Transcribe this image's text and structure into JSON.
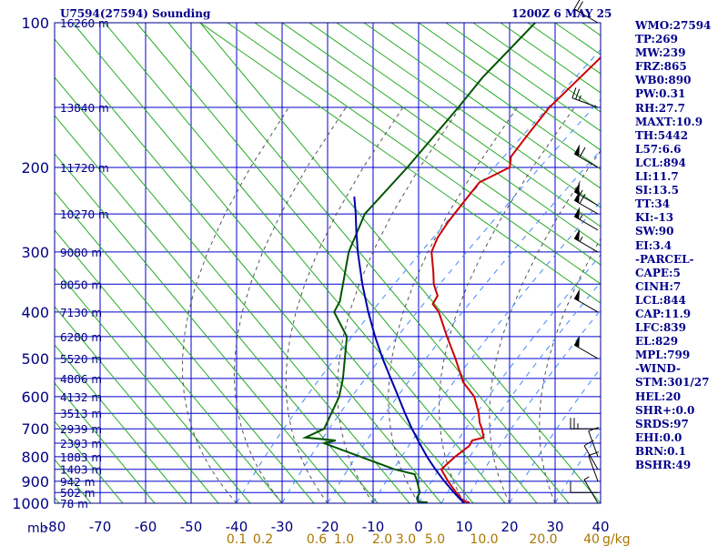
{
  "header": {
    "station": "U7594(27594) Sounding",
    "time": "1200Z  6 MAY 25"
  },
  "indices": [
    "WMO:27594",
    "TP:269",
    "MW:239",
    "FRZ:865",
    "WB0:890",
    "PW:0.31",
    "RH:27.7",
    "MAXT:10.9",
    "TH:5442",
    "L57:6.6",
    "LCL:894",
    "LI:11.7",
    "SI:13.5",
    "TT:34",
    "KI:-13",
    "SW:90",
    "EI:3.4",
    "-PARCEL-",
    "CAPE:5",
    "CINH:7",
    "LCL:844",
    "CAP:11.9",
    "LFC:839",
    "EL:829",
    "MPL:799",
    "-WIND-",
    "STM:301/27",
    "HEL:20",
    "SHR+:0.0",
    "SRDS:97",
    "EHI:0.0",
    "BRN:0.1",
    "BSHR:49"
  ],
  "colors": {
    "frame": "#00008b",
    "grid": "#0000cd",
    "dry_adiabat": "#22aa22",
    "temperature": "#cc0000",
    "dewpoint": "#005500",
    "parcel": "#0000aa",
    "moist_adiabat": "#555555",
    "mixing_ratio": "#4488ff",
    "label": "#000080",
    "mr_label": "#aa7700"
  },
  "chart_data": {
    "type": "skew-t",
    "y_axis": {
      "label": "mb",
      "scale": "log",
      "range": [
        1000,
        100
      ],
      "ticks": [
        100,
        200,
        300,
        400,
        500,
        600,
        700,
        800,
        900,
        1000
      ]
    },
    "x_axis": {
      "ticks": [
        -80,
        -70,
        -60,
        -50,
        -40,
        -30,
        -20,
        -10,
        0,
        10,
        20,
        30,
        40
      ],
      "tick_labels": [
        "-80",
        "-70",
        "-60",
        "-50",
        "-40",
        "-30",
        "-20",
        "-10",
        "0",
        "10",
        "20",
        "30",
        "40"
      ]
    },
    "heights": [
      {
        "p": 1000,
        "label": "78 m"
      },
      {
        "p": 950,
        "label": "502 m"
      },
      {
        "p": 900,
        "label": "942 m"
      },
      {
        "p": 850,
        "label": "1403 m"
      },
      {
        "p": 800,
        "label": "1883 m"
      },
      {
        "p": 750,
        "label": "2393 m"
      },
      {
        "p": 700,
        "label": "2939 m"
      },
      {
        "p": 650,
        "label": "3513 m"
      },
      {
        "p": 600,
        "label": "4132 m"
      },
      {
        "p": 550,
        "label": "4806 m"
      },
      {
        "p": 500,
        "label": "5520 m"
      },
      {
        "p": 450,
        "label": "6280 m"
      },
      {
        "p": 400,
        "label": "7130 m"
      },
      {
        "p": 350,
        "label": "8050 m"
      },
      {
        "p": 300,
        "label": "9080 m"
      },
      {
        "p": 250,
        "label": "10270 m"
      },
      {
        "p": 200,
        "label": "11720 m"
      },
      {
        "p": 150,
        "label": "13840 m"
      },
      {
        "p": 100,
        "label": "16260 m"
      }
    ],
    "mixing_ratio_labels": [
      {
        "value": 0.1,
        "label": "0.1"
      },
      {
        "value": 0.2,
        "label": "0.2"
      },
      {
        "value": 0.6,
        "label": "0.6"
      },
      {
        "value": 1,
        "label": "1.0"
      },
      {
        "value": 2,
        "label": "2.0"
      },
      {
        "value": 3,
        "label": "3.0"
      },
      {
        "value": 5,
        "label": "5.0"
      },
      {
        "value": 10,
        "label": "10.0"
      },
      {
        "value": 20,
        "label": "20.0"
      },
      {
        "value": 40,
        "label": "40"
      }
    ],
    "mixing_ratio_unit": "g/kg",
    "series": [
      {
        "id": "temperature",
        "points": [
          {
            "p": 996,
            "t": 11.0
          },
          {
            "p": 992,
            "t": 10.0
          },
          {
            "p": 980,
            "t": 8.5
          },
          {
            "p": 950,
            "t": 6.0
          },
          {
            "p": 900,
            "t": 1.8
          },
          {
            "p": 850,
            "t": -2.2
          },
          {
            "p": 800,
            "t": -1.8
          },
          {
            "p": 760,
            "t": -1.0
          },
          {
            "p": 740,
            "t": -1.5
          },
          {
            "p": 730,
            "t": 0.4
          },
          {
            "p": 700,
            "t": -1.8
          },
          {
            "p": 680,
            "t": -3.6
          },
          {
            "p": 650,
            "t": -5.8
          },
          {
            "p": 600,
            "t": -10.3
          },
          {
            "p": 560,
            "t": -15.8
          },
          {
            "p": 500,
            "t": -22.5
          },
          {
            "p": 450,
            "t": -29.0
          },
          {
            "p": 400,
            "t": -36.0
          },
          {
            "p": 385,
            "t": -39.0
          },
          {
            "p": 370,
            "t": -39.7
          },
          {
            "p": 350,
            "t": -43.0
          },
          {
            "p": 330,
            "t": -45.7
          },
          {
            "p": 300,
            "t": -50.3
          },
          {
            "p": 280,
            "t": -52.0
          },
          {
            "p": 260,
            "t": -53.0
          },
          {
            "p": 230,
            "t": -54.0
          },
          {
            "p": 215,
            "t": -54.5
          },
          {
            "p": 200,
            "t": -51.0
          },
          {
            "p": 190,
            "t": -53.0
          },
          {
            "p": 170,
            "t": -54.0
          },
          {
            "p": 150,
            "t": -55.0
          },
          {
            "p": 120,
            "t": -54.3
          },
          {
            "p": 100,
            "t": -54.0
          }
        ]
      },
      {
        "id": "dewpoint",
        "points": [
          {
            "p": 996,
            "t": 1.8
          },
          {
            "p": 992,
            "t": -0.5
          },
          {
            "p": 975,
            "t": -1.5
          },
          {
            "p": 950,
            "t": -2.0
          },
          {
            "p": 900,
            "t": -5.0
          },
          {
            "p": 870,
            "t": -7.0
          },
          {
            "p": 850,
            "t": -12.5
          },
          {
            "p": 750,
            "t": -33.5
          },
          {
            "p": 740,
            "t": -31.5
          },
          {
            "p": 730,
            "t": -38.8
          },
          {
            "p": 700,
            "t": -36.5
          },
          {
            "p": 600,
            "t": -40.0
          },
          {
            "p": 550,
            "t": -43.0
          },
          {
            "p": 450,
            "t": -51.0
          },
          {
            "p": 400,
            "t": -59.0
          },
          {
            "p": 380,
            "t": -60.0
          },
          {
            "p": 340,
            "t": -64.0
          },
          {
            "p": 300,
            "t": -68.5
          },
          {
            "p": 250,
            "t": -73.0
          },
          {
            "p": 200,
            "t": -73.5
          },
          {
            "p": 150,
            "t": -75.0
          },
          {
            "p": 130,
            "t": -76.0
          },
          {
            "p": 100,
            "t": -76.0
          }
        ]
      },
      {
        "id": "parcel",
        "points": [
          {
            "p": 1000,
            "t": 10.0
          },
          {
            "p": 950,
            "t": 5.5
          },
          {
            "p": 900,
            "t": 1.0
          },
          {
            "p": 850,
            "t": -3.5
          },
          {
            "p": 800,
            "t": -8.0
          },
          {
            "p": 750,
            "t": -12.5
          },
          {
            "p": 700,
            "t": -17.2
          },
          {
            "p": 650,
            "t": -22.0
          },
          {
            "p": 600,
            "t": -27.0
          },
          {
            "p": 550,
            "t": -32.5
          },
          {
            "p": 500,
            "t": -38.5
          },
          {
            "p": 450,
            "t": -44.8
          },
          {
            "p": 400,
            "t": -51.5
          },
          {
            "p": 350,
            "t": -58.7
          },
          {
            "p": 300,
            "t": -66.5
          },
          {
            "p": 270,
            "t": -71.5
          },
          {
            "p": 250,
            "t": -75.0
          },
          {
            "p": 230,
            "t": -79.0
          }
        ]
      }
    ],
    "wind_barbs": [
      {
        "p": 100,
        "dir": 300,
        "speed": 20
      },
      {
        "p": 150,
        "dir": 290,
        "speed": 25
      },
      {
        "p": 200,
        "dir": 300,
        "speed": 60
      },
      {
        "p": 240,
        "dir": 300,
        "speed": 55
      },
      {
        "p": 250,
        "dir": 300,
        "speed": 60
      },
      {
        "p": 270,
        "dir": 300,
        "speed": 55
      },
      {
        "p": 300,
        "dir": 300,
        "speed": 55
      },
      {
        "p": 400,
        "dir": 300,
        "speed": 50
      },
      {
        "p": 500,
        "dir": 300,
        "speed": 50
      },
      {
        "p": 700,
        "dir": 270,
        "speed": 25
      },
      {
        "p": 800,
        "dir": 340,
        "speed": 10
      },
      {
        "p": 850,
        "dir": 330,
        "speed": 10
      },
      {
        "p": 900,
        "dir": 340,
        "speed": 10
      },
      {
        "p": 950,
        "dir": 270,
        "speed": 10
      },
      {
        "p": 1000,
        "dir": 330,
        "speed": 5
      }
    ]
  }
}
